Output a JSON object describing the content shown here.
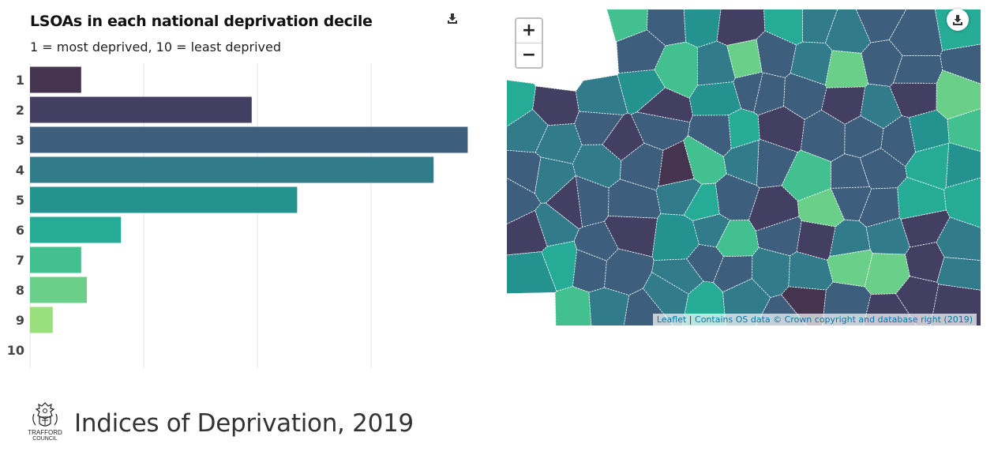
{
  "chart": {
    "title": "LSOAs in each national deprivation decile",
    "subtitle": "1 = most deprived, 10 = least deprived",
    "download_icon": "download-icon"
  },
  "chart_data": {
    "type": "bar",
    "orientation": "horizontal",
    "categories": [
      "1",
      "2",
      "3",
      "4",
      "5",
      "6",
      "7",
      "8",
      "9",
      "10"
    ],
    "values": [
      9,
      39,
      77,
      71,
      47,
      16,
      9,
      10,
      4,
      0
    ],
    "colors": [
      "#45344f",
      "#433f63",
      "#3d5f7d",
      "#317b8b",
      "#24928f",
      "#25ab96",
      "#43c08f",
      "#6ad089",
      "#99e07d",
      "#c2e87a"
    ],
    "xlim": [
      0,
      80
    ],
    "grid": true,
    "legend": "none"
  },
  "map": {
    "zoom_in": "+",
    "zoom_out": "−",
    "attribution_leaflet": "Leaflet",
    "attribution_separator": "|",
    "attribution_os": "Contains OS data © Crown copyright and database right (2019)",
    "download_icon": "download-icon"
  },
  "footer": {
    "logo_line1": "TRAFFORD",
    "logo_line2": "COUNCIL",
    "title": "Indices of Deprivation, 2019"
  }
}
